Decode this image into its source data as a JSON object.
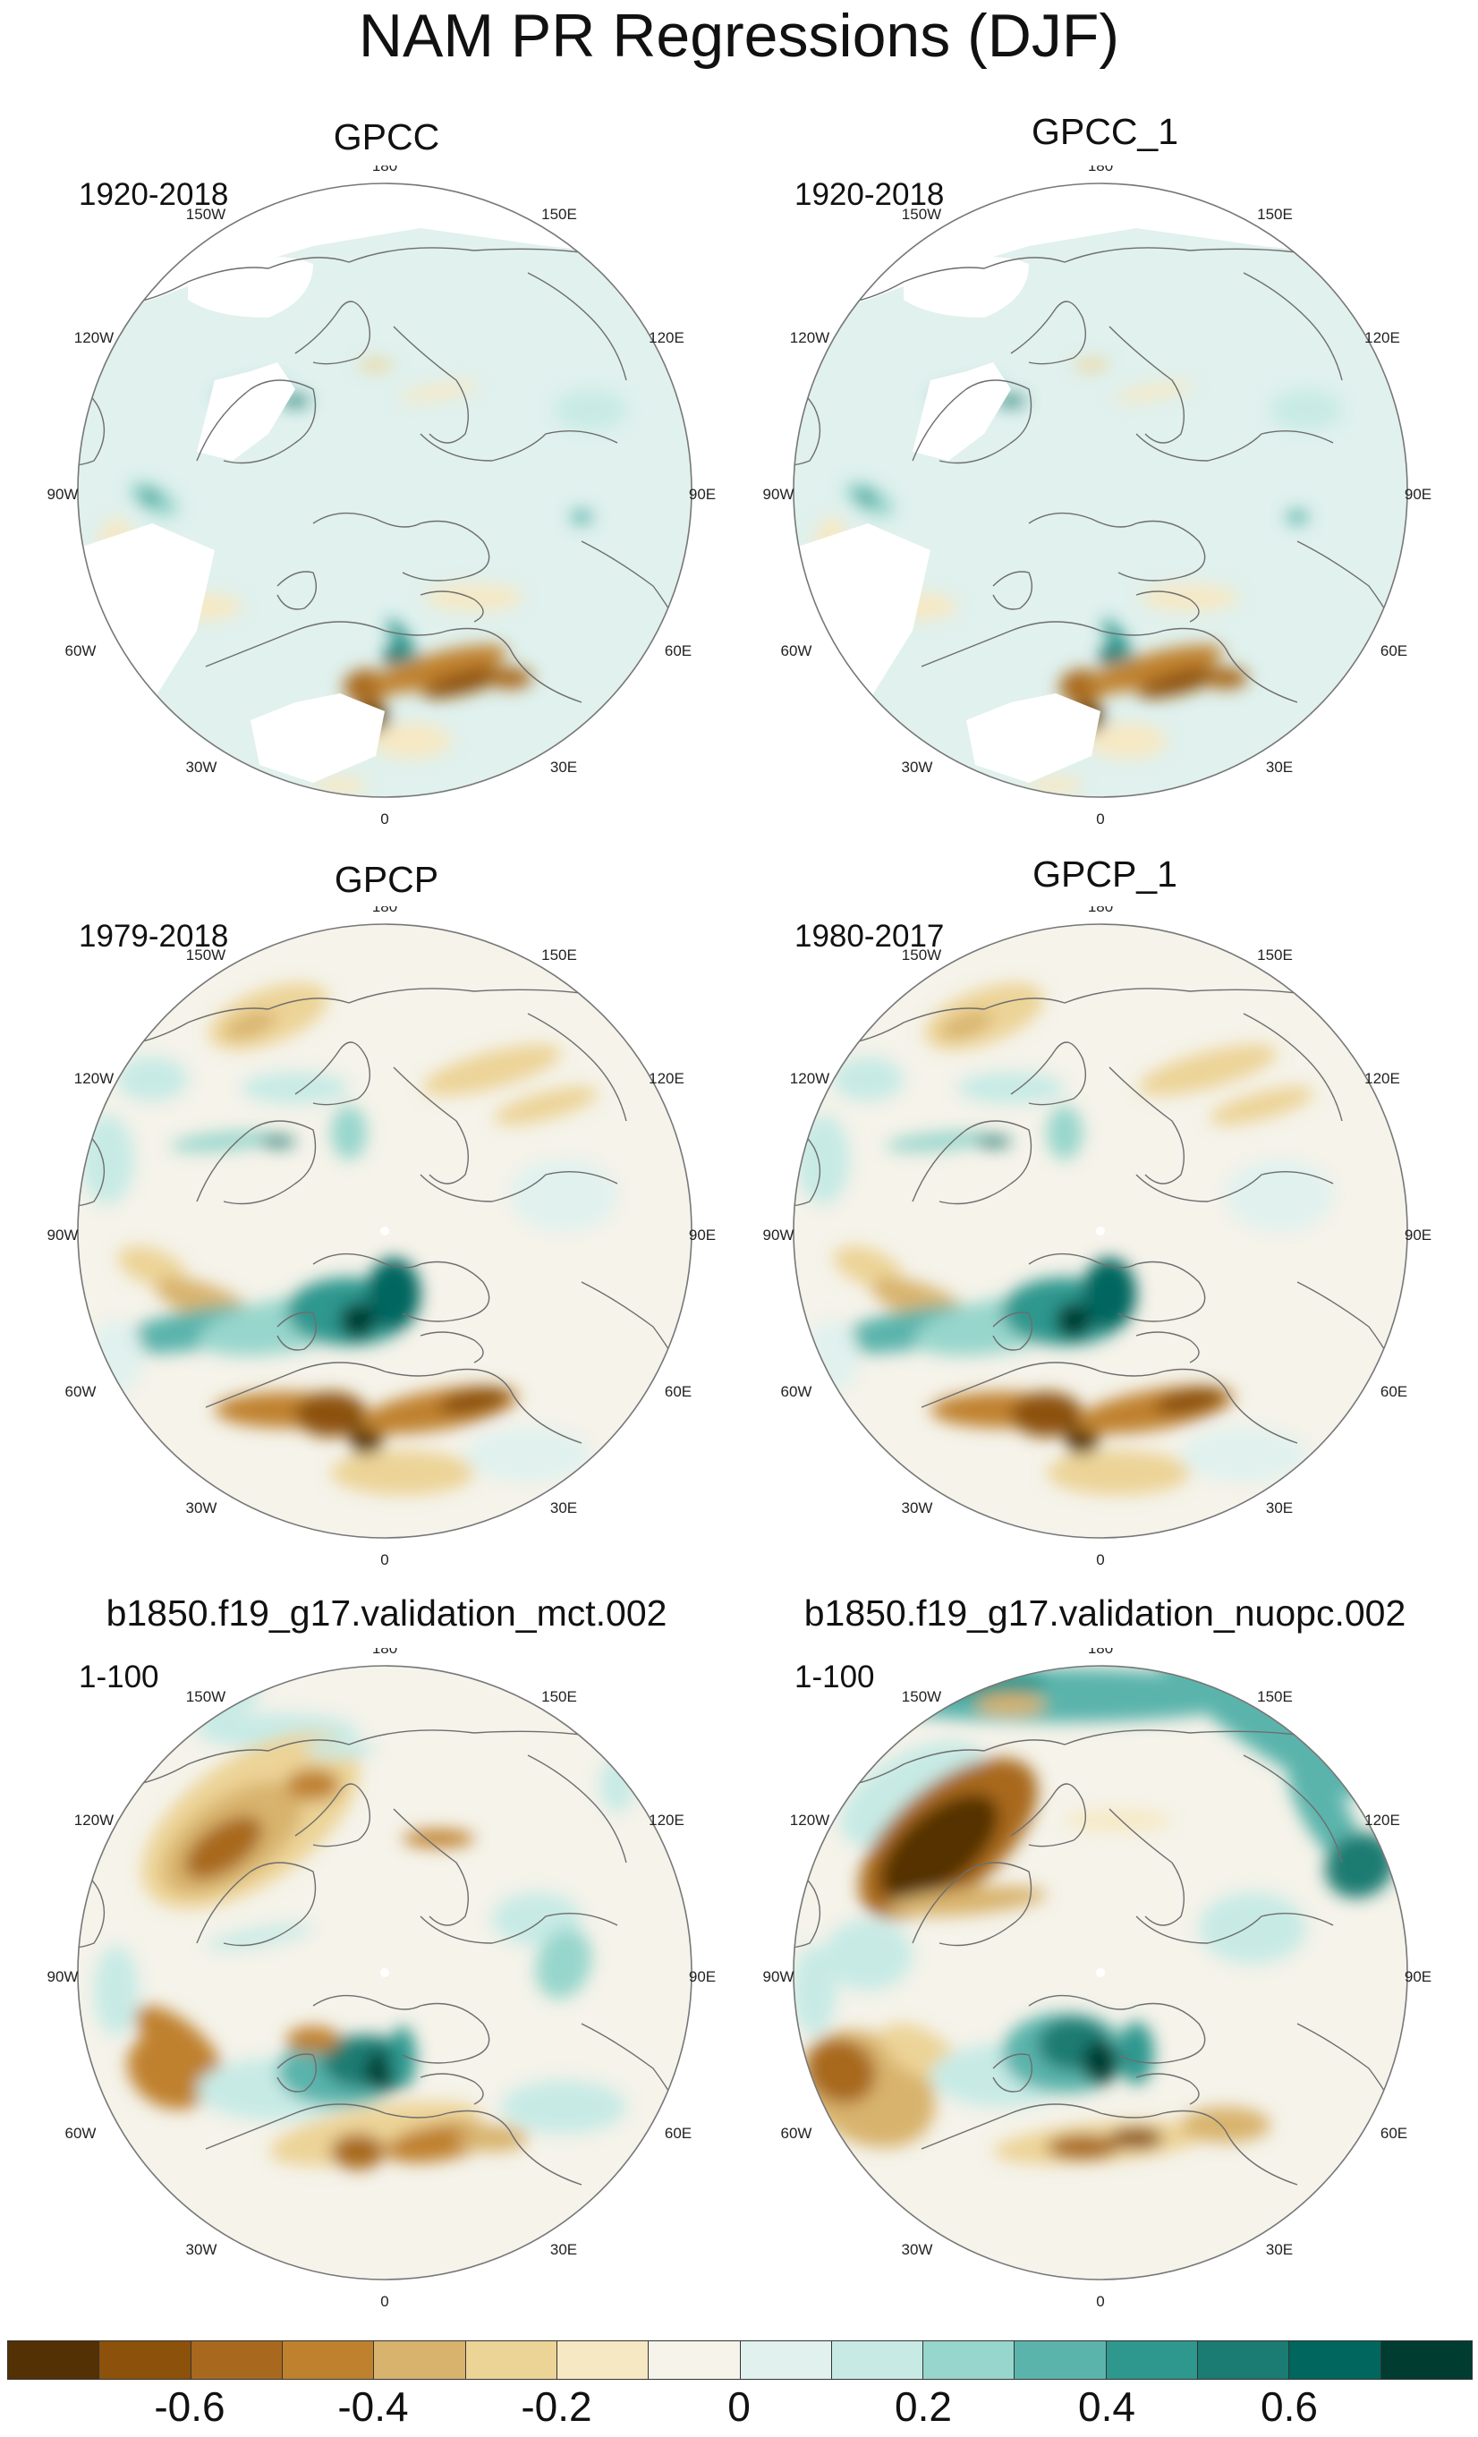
{
  "title": "NAM PR Regressions (DJF)",
  "panels": [
    {
      "title": "GPCC",
      "years": "1920-2018",
      "style": "gpcc"
    },
    {
      "title": "GPCC_1",
      "years": "1920-2018",
      "style": "gpcc"
    },
    {
      "title": "GPCP",
      "years": "1979-2018",
      "style": "gpcp"
    },
    {
      "title": "GPCP_1",
      "years": "1980-2017",
      "style": "gpcp"
    },
    {
      "title": "b1850.f19_g17.validation_mct.002",
      "years": "1-100",
      "style": "model"
    },
    {
      "title": "b1850.f19_g17.validation_nuopc.002",
      "years": "1-100",
      "style": "model2"
    }
  ],
  "longitude_labels": {
    "top": "180",
    "left_top": "150W",
    "right_top": "150E",
    "left_upper": "120W",
    "right_upper": "120E",
    "left_mid": "90W",
    "right_mid": "90E",
    "left_lower": "60W",
    "right_lower": "60E",
    "left_bottom": "30W",
    "right_bottom": "30E",
    "bottom": "0"
  },
  "colorbar": {
    "colors": [
      "#543005",
      "#8c510a",
      "#a8691f",
      "#bf812d",
      "#d8b36d",
      "#ecd396",
      "#f6e8c3",
      "#f5f3ea",
      "#e0f1ee",
      "#c7eae5",
      "#97d6cc",
      "#5ab4ac",
      "#2e978e",
      "#1a7c72",
      "#01665e",
      "#003c30"
    ],
    "labels": [
      "-0.6",
      "-0.4",
      "-0.2",
      "0",
      "0.2",
      "0.4",
      "0.6"
    ]
  }
}
